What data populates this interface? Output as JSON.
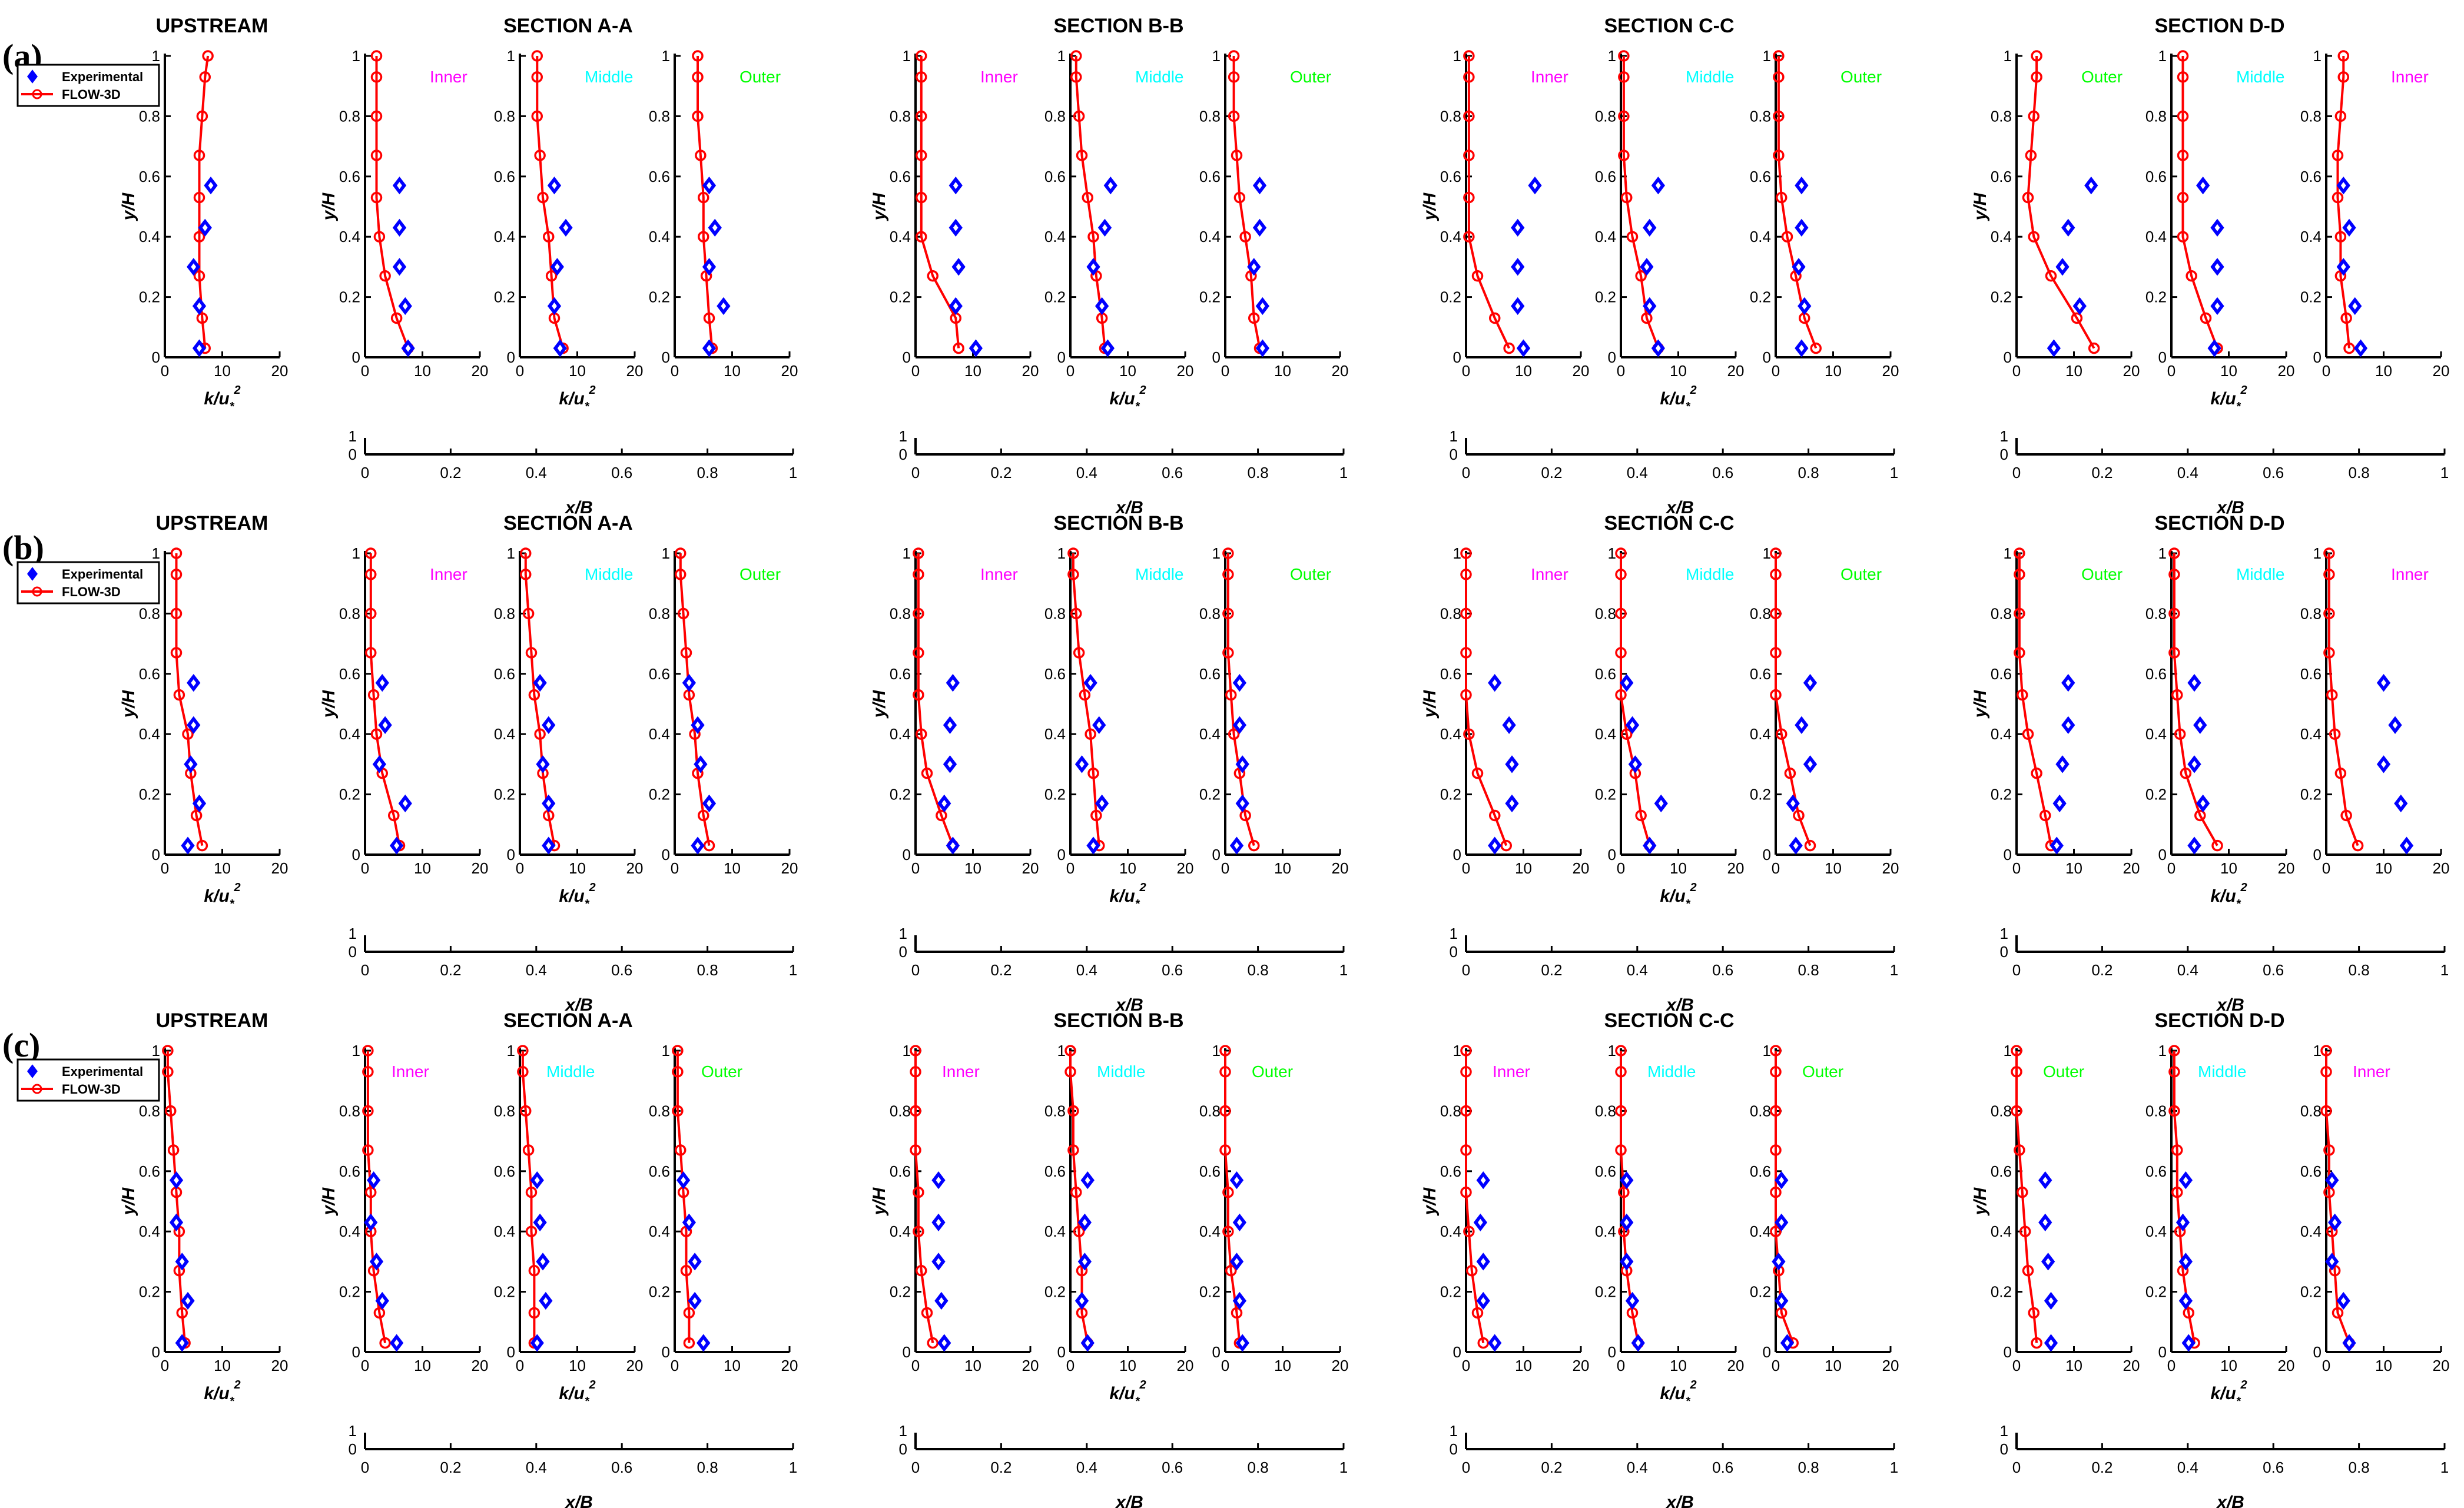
{
  "chart_data": {
    "type": "line",
    "description_free": true,
    "panels": [
      "(a)",
      "(b)",
      "(c)"
    ],
    "legend": [
      {
        "name": "Experimental",
        "marker": "diamond",
        "color": "#0000ff"
      },
      {
        "name": "FLOW-3D",
        "marker": "circle-line",
        "color": "#ff0000"
      }
    ],
    "xlabel_k": "k/u*²",
    "ylabel": "y/H",
    "xlabel_pos": "x/B",
    "k_ticks": [
      "0",
      "10",
      "20"
    ],
    "y_ticks": [
      "0",
      "0.2",
      "0.4",
      "0.6",
      "0.8",
      "1"
    ],
    "pos_ticks": [
      "0",
      "0.2",
      "0.4",
      "0.6",
      "0.8",
      "1"
    ],
    "pos_yticks": [
      "0",
      "1"
    ],
    "xlim": [
      0,
      20
    ],
    "ylim": [
      0,
      1
    ],
    "position_colors": {
      "Inner": "#ff00ff",
      "Middle": "#00ffff",
      "Outer": "#00ff00"
    },
    "sections": [
      {
        "title": "UPSTREAM"
      },
      {
        "title": "SECTION A-A",
        "positions": [
          "Inner",
          "Middle",
          "Outer"
        ]
      },
      {
        "title": "SECTION B-B",
        "positions": [
          "Inner",
          "Middle",
          "Outer"
        ]
      },
      {
        "title": "SECTION C-C",
        "positions": [
          "Inner",
          "Middle",
          "Outer"
        ]
      },
      {
        "title": "SECTION D-D",
        "positions": [
          "Outer",
          "Middle",
          "Inner"
        ]
      }
    ],
    "model_y": [
      1.0,
      0.93,
      0.8,
      0.67,
      0.53,
      0.4,
      0.27,
      0.13,
      0.03
    ],
    "exp_y": [
      0.57,
      0.43,
      0.3,
      0.17,
      0.03
    ],
    "rows": [
      {
        "label": "(a)",
        "upstream": {
          "model": [
            7.5,
            7,
            6.5,
            6,
            6,
            6,
            6,
            6.5,
            7
          ],
          "exp": [
            8,
            7,
            5,
            6,
            6
          ]
        },
        "sections": [
          [
            {
              "model": [
                2,
                2,
                2,
                2,
                2,
                2.5,
                3.5,
                5.5,
                7.5
              ],
              "exp": [
                6,
                6,
                6,
                7,
                7.5
              ]
            },
            {
              "model": [
                3,
                3,
                3,
                3.5,
                4,
                5,
                5.5,
                6,
                7.5
              ],
              "exp": [
                6,
                8,
                6.5,
                6,
                7
              ]
            },
            {
              "model": [
                4,
                4,
                4,
                4.5,
                5,
                5,
                5.5,
                6,
                6.5
              ],
              "exp": [
                6,
                7,
                6,
                8.5,
                6
              ]
            }
          ],
          [
            {
              "model": [
                1,
                1,
                1,
                1,
                1,
                1,
                3,
                7,
                7.5
              ],
              "exp": [
                7,
                7,
                7.5,
                7,
                10.5
              ]
            },
            {
              "model": [
                1,
                1,
                1.5,
                2,
                3,
                4,
                4.5,
                5.5,
                6
              ],
              "exp": [
                7,
                6,
                4,
                5.5,
                6.5
              ]
            },
            {
              "model": [
                1.5,
                1.5,
                1.5,
                2,
                2.5,
                3.5,
                4.5,
                5,
                6
              ],
              "exp": [
                6,
                6,
                5,
                6.5,
                6.5
              ]
            }
          ],
          [
            {
              "model": [
                0.5,
                0.5,
                0.5,
                0.5,
                0.5,
                0.5,
                2,
                5,
                7.5
              ],
              "exp": [
                12,
                9,
                9,
                9,
                10
              ]
            },
            {
              "model": [
                0.5,
                0.5,
                0.5,
                0.5,
                1,
                2,
                3.5,
                4.5,
                6.5
              ],
              "exp": [
                6.5,
                5,
                4.5,
                5,
                6.5
              ]
            },
            {
              "model": [
                0.5,
                0.5,
                0.5,
                0.5,
                1,
                2,
                3.5,
                5,
                7
              ],
              "exp": [
                4.5,
                4.5,
                4,
                5,
                4.5
              ]
            }
          ],
          [
            {
              "model": [
                3.5,
                3.5,
                3,
                2.5,
                2,
                3,
                6,
                10.5,
                13.5
              ],
              "exp": [
                13,
                9,
                8,
                11,
                6.5
              ]
            },
            {
              "model": [
                2,
                2,
                2,
                2,
                2,
                2,
                3.5,
                6,
                8
              ],
              "exp": [
                5.5,
                8,
                8,
                8,
                7.5
              ]
            },
            {
              "model": [
                3,
                3,
                2.5,
                2,
                2,
                2.5,
                2.5,
                3.5,
                4
              ],
              "exp": [
                3,
                4,
                3,
                5,
                6
              ]
            }
          ]
        ]
      },
      {
        "label": "(b)",
        "upstream": {
          "model": [
            2,
            2,
            2,
            2,
            2.5,
            4,
            4.5,
            5.5,
            6.5
          ],
          "exp": [
            5,
            5,
            4.5,
            6,
            4
          ]
        },
        "sections": [
          [
            {
              "model": [
                1,
                1,
                1,
                1,
                1.5,
                2,
                3,
                5,
                6
              ],
              "exp": [
                3,
                3.5,
                2.5,
                7,
                5.5
              ]
            },
            {
              "model": [
                1,
                1,
                1.5,
                2,
                2.5,
                3.5,
                4,
                5,
                6
              ],
              "exp": [
                3.5,
                5,
                4,
                5,
                5
              ]
            },
            {
              "model": [
                1,
                1,
                1.5,
                2,
                2.5,
                3.5,
                4,
                5,
                6
              ],
              "exp": [
                2.5,
                4,
                4.5,
                6,
                4
              ]
            }
          ],
          [
            {
              "model": [
                0.5,
                0.5,
                0.5,
                0.5,
                0.5,
                1,
                2,
                4.5,
                6.5
              ],
              "exp": [
                6.5,
                6,
                6,
                5,
                6.5
              ]
            },
            {
              "model": [
                0.5,
                0.5,
                1,
                1.5,
                2.5,
                3.5,
                4,
                4.5,
                5
              ],
              "exp": [
                3.5,
                5,
                2,
                5.5,
                4
              ]
            },
            {
              "model": [
                0.5,
                0.5,
                0.5,
                0.5,
                1,
                1.5,
                2.5,
                3.5,
                5
              ],
              "exp": [
                2.5,
                2.5,
                3,
                3,
                2
              ]
            }
          ],
          [
            {
              "model": [
                0,
                0,
                0,
                0,
                0,
                0.5,
                2,
                5,
                7
              ],
              "exp": [
                5,
                7.5,
                8,
                8,
                5
              ]
            },
            {
              "model": [
                0,
                0,
                0,
                0,
                0,
                1,
                2.5,
                3.5,
                5
              ],
              "exp": [
                1,
                2,
                2.5,
                7,
                5
              ]
            },
            {
              "model": [
                0,
                0,
                0,
                0,
                0,
                1,
                2.5,
                4,
                6
              ],
              "exp": [
                6,
                4.5,
                6,
                3,
                3.5
              ]
            }
          ],
          [
            {
              "model": [
                0.5,
                0.5,
                0.5,
                0.5,
                1,
                2,
                3.5,
                5,
                6
              ],
              "exp": [
                9,
                9,
                8,
                7.5,
                7
              ]
            },
            {
              "model": [
                0.5,
                0.5,
                0.5,
                0.5,
                1,
                1.5,
                2.5,
                5,
                8
              ],
              "exp": [
                4,
                5,
                4,
                5.5,
                4
              ]
            },
            {
              "model": [
                0.5,
                0.5,
                0.5,
                0.5,
                1,
                1.5,
                2.5,
                3.5,
                5.5
              ],
              "exp": [
                10,
                12,
                10,
                13,
                14
              ]
            }
          ]
        ]
      },
      {
        "label": "(c)",
        "upstream": {
          "model": [
            0.5,
            0.5,
            1,
            1.5,
            2,
            2.5,
            2.5,
            3,
            3.5
          ],
          "exp": [
            2,
            2,
            3,
            4,
            3
          ]
        },
        "sections": [
          [
            {
              "model": [
                0.5,
                0.5,
                0.5,
                0.5,
                1,
                1,
                1.5,
                2.5,
                3.5
              ],
              "exp": [
                1.5,
                1,
                2,
                3,
                5.5
              ]
            },
            {
              "model": [
                0.5,
                0.5,
                1,
                1.5,
                2,
                2,
                2.5,
                2.5,
                2.5
              ],
              "exp": [
                3,
                3.5,
                4,
                4.5,
                3
              ]
            },
            {
              "model": [
                0.5,
                0.5,
                0.5,
                1,
                1.5,
                2,
                2,
                2.5,
                2.5
              ],
              "exp": [
                1.5,
                2.5,
                3.5,
                3.5,
                5
              ]
            }
          ],
          [
            {
              "model": [
                0,
                0,
                0,
                0,
                0.5,
                0.5,
                1,
                2,
                3
              ],
              "exp": [
                4,
                4,
                4,
                4.5,
                5
              ]
            },
            {
              "model": [
                0,
                0,
                0.5,
                0.5,
                1,
                1.5,
                2,
                2,
                3
              ],
              "exp": [
                3,
                2.5,
                2.5,
                2,
                3
              ]
            },
            {
              "model": [
                0,
                0,
                0,
                0,
                0.5,
                0.5,
                1,
                2,
                2.5
              ],
              "exp": [
                2,
                2.5,
                2,
                2.5,
                3
              ]
            }
          ],
          [
            {
              "model": [
                0,
                0,
                0,
                0,
                0,
                0.5,
                1,
                2,
                3
              ],
              "exp": [
                3,
                2.5,
                3,
                3,
                5
              ]
            },
            {
              "model": [
                0,
                0,
                0,
                0,
                0.5,
                0.5,
                1,
                2,
                3
              ],
              "exp": [
                1,
                1,
                1,
                2,
                3
              ]
            },
            {
              "model": [
                0,
                0,
                0,
                0,
                0,
                0,
                0.5,
                1,
                3
              ],
              "exp": [
                1,
                1,
                0.5,
                1,
                2
              ]
            }
          ],
          [
            {
              "model": [
                0,
                0,
                0,
                0.5,
                1,
                1.5,
                2,
                3,
                3.5
              ],
              "exp": [
                5,
                5,
                5.5,
                6,
                6
              ]
            },
            {
              "model": [
                0.5,
                0.5,
                0.5,
                1,
                1,
                1.5,
                2,
                3,
                4
              ],
              "exp": [
                2.5,
                2,
                2.5,
                2.5,
                3
              ]
            },
            {
              "model": [
                0,
                0,
                0,
                0.5,
                0.5,
                1,
                1.5,
                2,
                4
              ],
              "exp": [
                1,
                1.5,
                1,
                3,
                4
              ]
            }
          ]
        ]
      }
    ]
  }
}
